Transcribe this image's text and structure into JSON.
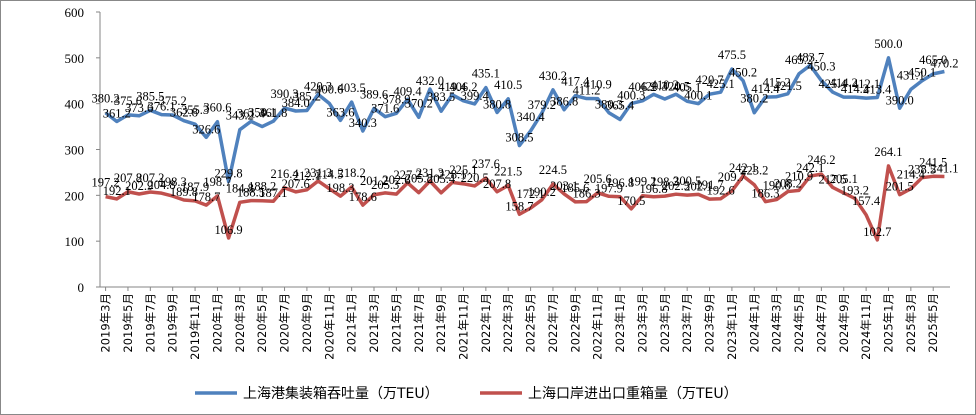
{
  "chart_data": {
    "type": "line",
    "categories": [
      "2019年3月",
      null,
      "2019年5月",
      null,
      "2019年7月",
      null,
      "2019年9月",
      null,
      "2019年11月",
      null,
      "2020年1月",
      null,
      "2020年3月",
      null,
      "2020年5月",
      null,
      "2020年7月",
      null,
      "2020年9月",
      null,
      "2020年11月",
      null,
      "2021年1月",
      null,
      "2021年3月",
      null,
      "2021年5月",
      null,
      "2021年7月",
      null,
      "2021年9月",
      null,
      "2021年11月",
      null,
      "2022年1月",
      null,
      "2022年3月",
      null,
      "2022年5月",
      null,
      "2022年7月",
      null,
      "2022年9月",
      null,
      "2022年11月",
      null,
      "2023年1月",
      null,
      "2023年3月",
      null,
      "2023年5月",
      null,
      "2023年7月",
      null,
      "2023年9月",
      null,
      "2023年11月",
      null,
      "2024年1月",
      null,
      "2024年3月",
      null,
      "2024年5月",
      null,
      "2024年7月",
      null,
      "2024年9月",
      null,
      "2024年11月",
      null,
      "2025年1月",
      null,
      "2025年3月",
      null,
      "2025年5月",
      null
    ],
    "series": [
      {
        "name": "上海港集装箱吞吐量（万TEU）",
        "color": "#4f81bd",
        "values": [
          380.2,
          361.2,
          375.6,
          373.6,
          385.5,
          376.1,
          375.2,
          362.8,
          355.3,
          326.6,
          360.6,
          229.8,
          343.2,
          361.4,
          350.1,
          361.8,
          390.3,
          384.0,
          385.2,
          420.3,
          400.6,
          363.6,
          403.5,
          340.3,
          389.6,
          371.6,
          378.9,
          409.4,
          370.2,
          432.0,
          383.5,
          419.4,
          406.2,
          399.4,
          435.1,
          380.8,
          410.5,
          308.5,
          340.4,
          379.2,
          430.2,
          386.8,
          417.4,
          411.2,
          410.9,
          380.3,
          365.4,
          400.3,
          406.2,
          420.3,
          410.2,
          420.5,
          405.1,
          400.1,
          420.7,
          425.1,
          475.5,
          450.2,
          380.2,
          414.4,
          415.2,
          421.5,
          465.2,
          483.7,
          450.3,
          425.4,
          414.2,
          414.2,
          412.1,
          413.4,
          500.0,
          390.0,
          431.1,
          450.1,
          465.0,
          470.2
        ],
        "value_labels": [
          "380.2",
          "361.2",
          "375.6",
          "373.6",
          "385.5",
          "376.1",
          "375.2",
          "362.8",
          "355.3",
          "326.6",
          "360.6",
          "229.8",
          "343.2",
          "361.4",
          "350.1",
          "361.8",
          "390.3",
          "384.0",
          "385.2",
          "420.3",
          "400.6",
          "363.6",
          "403.5",
          "340.3",
          "389.6",
          "371.6",
          "378.9",
          "409.4",
          "370.2",
          "432.0",
          "383.5",
          "419.4",
          "406.2",
          "399.4",
          "435.1",
          "380.8",
          "410.5",
          "308.5",
          "340.4",
          "379.2",
          "430.2",
          "386.8",
          "417.4",
          "411.2",
          "410.9",
          "380.3",
          "365.4",
          "400.3",
          "406.2",
          "420.3",
          "410.2",
          "420.5",
          "405.1",
          "400.1",
          "420.7",
          "425.1",
          "475.5",
          "450.2",
          "380.2",
          "414.4",
          "415.2",
          "421.5",
          "465.2",
          "483.7",
          "450.3",
          "425.4",
          "414.2",
          "414.2",
          "412.1",
          "413.4",
          "500.0",
          "390.0",
          "431.1",
          "450.1",
          "465.0",
          "470.2"
        ]
      },
      {
        "name": "上海口岸进出口重箱量（万TEU）",
        "color": "#c0504d",
        "values": [
          197.2,
          192.1,
          207.8,
          202.9,
          207.2,
          204.8,
          198.3,
          189.8,
          187.9,
          178.7,
          198.7,
          106.9,
          184.8,
          188.5,
          188.2,
          187.1,
          216.4,
          207.6,
          212.1,
          231.3,
          214.5,
          198.3,
          218.2,
          178.6,
          201.2,
          205.3,
          202.6,
          227.2,
          205.8,
          231.3,
          205.4,
          228.1,
          225.1,
          220.5,
          237.6,
          207.8,
          221.5,
          158.7,
          172.1,
          190.2,
          224.5,
          203.1,
          185.6,
          186.3,
          205.6,
          197.9,
          196.8,
          170.5,
          199.2,
          196.8,
          198.3,
          202.5,
          200.5,
          202.1,
          191.7,
          192.6,
          209.7,
          242.1,
          223.2,
          186.3,
          190.8,
          208.2,
          210.9,
          242.1,
          246.2,
          217.5,
          205.1,
          193.2,
          157.4,
          102.7,
          264.1,
          201.5,
          214.4,
          238.5,
          241.5,
          241.1
        ]
      }
    ],
    "ylim": [
      0,
      600
    ],
    "yticks": [
      0,
      100,
      200,
      300,
      400,
      500,
      600
    ],
    "grid": false,
    "legend": "bottom"
  }
}
